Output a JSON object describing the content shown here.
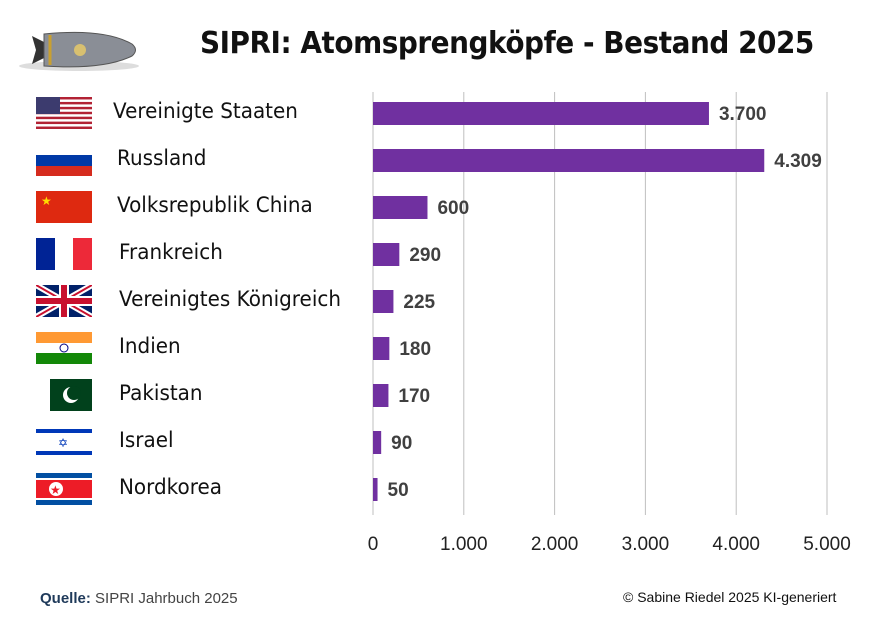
{
  "title": "SIPRI:  Atomsprengköpfe - Bestand 2025",
  "colors": {
    "bar": "#7030a0",
    "grid": "#bfbfbf",
    "value_label": "#404040"
  },
  "logo": "bomb-illustration",
  "chart_data": {
    "type": "bar",
    "orientation": "horizontal",
    "title": "SIPRI:  Atomsprengköpfe - Bestand 2025",
    "categories": [
      "Vereinigte Staaten",
      "Russland",
      "Volksrepublik China",
      "Frankreich",
      "Vereinigtes Königreich",
      "Indien",
      "Pakistan",
      "Israel",
      "Nordkorea"
    ],
    "flags": [
      "flag-usa",
      "flag-russia",
      "flag-china",
      "flag-france",
      "flag-uk",
      "flag-india",
      "flag-pakistan",
      "flag-israel",
      "flag-north-korea"
    ],
    "values": [
      3700,
      4309,
      600,
      290,
      225,
      180,
      170,
      90,
      50
    ],
    "value_labels": [
      "3.700",
      "4.309",
      "600",
      "290",
      "225",
      "180",
      "170",
      "90",
      "50"
    ],
    "xlim": [
      0,
      5000
    ],
    "x_ticks": [
      0,
      1000,
      2000,
      3000,
      4000,
      5000
    ],
    "x_tick_labels": [
      "0",
      "1.000",
      "2.000",
      "3.000",
      "4.000",
      "5.000"
    ],
    "grid": true
  },
  "footer": {
    "source_label": "Quelle:",
    "source_text": "SIPRI Jahrbuch 2025",
    "copyright": "©  Sabine Riedel 2025  KI-generiert"
  }
}
